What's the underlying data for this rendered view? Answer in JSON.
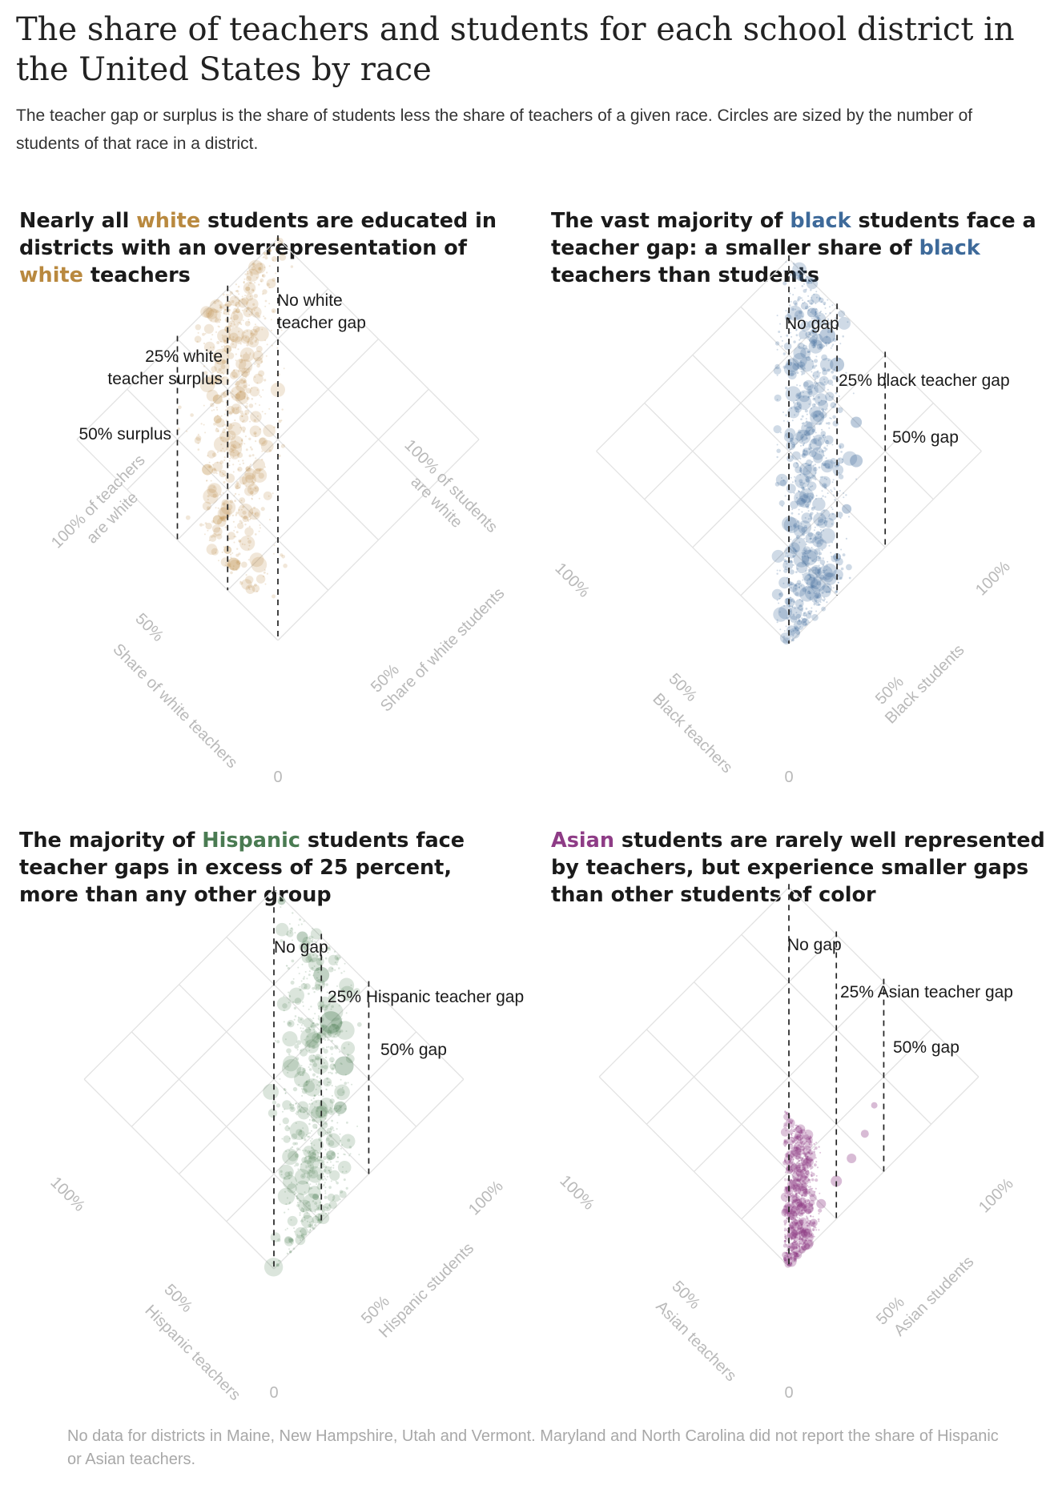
{
  "title": "The share of teachers and students for each school district in the United States by race",
  "subtitle": "The teacher gap or surplus is the share of students less the share of teachers of a given race. Circles are sized by the number of students of that race in a district.",
  "footnote": "No data for districts in Maine, New Hampshire, Utah and Vermont. Maryland and North Carolina did not report the share of Hispanic or Asian teachers.",
  "colors": {
    "white": "#b9893f",
    "black": "#3e6a9a",
    "hispanic": "#4a7b52",
    "asian": "#8e3c86",
    "grid": "#e2e2e2",
    "axis_text": "#b9b9b9"
  },
  "panels": [
    {
      "heading": {
        "p1": "Nearly all ",
        "h1": "white",
        "p2": " students are educated in districts with an overrepresentation of ",
        "h2": "white",
        "p3": " teachers"
      },
      "annotations": {
        "line0_a": "No white",
        "line0_b": "teacher gap",
        "line1_a": "25% white",
        "line1_b": "teacher surplus",
        "line2": "50% surplus"
      },
      "axes": {
        "left_pct": "100% of teachers",
        "left_sub": "are white",
        "left_mid": "50%",
        "left_title": "Share of white teachers",
        "right_pct": "100% of students",
        "right_sub": "are white",
        "right_mid": "50%",
        "right_title": "Share of white students",
        "origin": "0"
      }
    },
    {
      "heading": {
        "p1": "The vast majority of ",
        "h1": "black",
        "p2": " students face a teacher gap: a smaller share of ",
        "h2": "black",
        "p3": " teachers than students"
      },
      "annotations": {
        "line0": "No gap",
        "line1": "25% black teacher gap",
        "line2": "50% gap"
      },
      "axes": {
        "left_pct": "100%",
        "left_mid": "50%",
        "left_title": "Black teachers",
        "right_pct": "100%",
        "right_mid": "50%",
        "right_title": "Black students",
        "origin": "0"
      }
    },
    {
      "heading": {
        "p1": "The majority of ",
        "h1": "Hispanic",
        "p2": " students face teacher gaps in excess of 25 percent, more than any other group",
        "h2": "",
        "p3": ""
      },
      "annotations": {
        "line0": "No gap",
        "line1": "25% Hispanic teacher gap",
        "line2": "50% gap"
      },
      "axes": {
        "left_pct": "100%",
        "left_mid": "50%",
        "left_title": "Hispanic teachers",
        "right_pct": "100%",
        "right_mid": "50%",
        "right_title": "Hispanic students",
        "origin": "0"
      }
    },
    {
      "heading": {
        "p1": "",
        "h1": "Asian",
        "p2": " students are rarely well represented by teachers, but experience smaller gaps than other students of color",
        "h2": "",
        "p3": ""
      },
      "annotations": {
        "line0": "No gap",
        "line1": "25% Asian teacher gap",
        "line2": "50% gap"
      },
      "axes": {
        "left_pct": "100%",
        "left_mid": "50%",
        "left_title": "Asian teachers",
        "right_pct": "100%",
        "right_mid": "50%",
        "right_title": "Asian students",
        "origin": "0"
      }
    }
  ],
  "chart_data": [
    {
      "type": "scatter",
      "title": "Nearly all white students are educated in districts with an overrepresentation of white teachers",
      "xlabel": "Share of white teachers",
      "ylabel": "Share of white students",
      "xlim": [
        0,
        100
      ],
      "ylim": [
        0,
        100
      ],
      "color": "#b9893f",
      "reference_lines": [
        {
          "label": "No white teacher gap",
          "gap": 0
        },
        {
          "label": "25% white teacher surplus",
          "gap": -25
        },
        {
          "label": "50% surplus",
          "gap": -50
        }
      ],
      "cluster": {
        "student_range": [
          5,
          100
        ],
        "gap_mean": -22,
        "gap_spread": 14,
        "gap_min": -75,
        "gap_max": 10,
        "opacity": 0.2,
        "max_radius": 9
      },
      "points": [
        {
          "teachers": 100,
          "students": 100,
          "size": 2
        },
        {
          "teachers": 99,
          "students": 95,
          "size": 2
        },
        {
          "teachers": 97,
          "students": 88,
          "size": 2
        },
        {
          "teachers": 95,
          "students": 80,
          "size": 3
        },
        {
          "teachers": 92,
          "students": 72,
          "size": 3
        },
        {
          "teachers": 90,
          "students": 65,
          "size": 4
        },
        {
          "teachers": 85,
          "students": 60,
          "size": 5
        },
        {
          "teachers": 80,
          "students": 50,
          "size": 4
        },
        {
          "teachers": 75,
          "students": 45,
          "size": 6
        },
        {
          "teachers": 70,
          "students": 40,
          "size": 5
        },
        {
          "teachers": 60,
          "students": 25,
          "size": 7
        },
        {
          "teachers": 45,
          "students": 15,
          "size": 6
        },
        {
          "teachers": 35,
          "students": 10,
          "size": 5
        },
        {
          "teachers": 30,
          "students": 8,
          "size": 8
        }
      ]
    },
    {
      "type": "scatter",
      "title": "The vast majority of black students face a teacher gap: a smaller share of black teachers than students",
      "xlabel": "Black teachers",
      "ylabel": "Black students",
      "xlim": [
        0,
        100
      ],
      "ylim": [
        0,
        100
      ],
      "color": "#3e6a9a",
      "reference_lines": [
        {
          "label": "No gap",
          "gap": 0
        },
        {
          "label": "25% black teacher gap",
          "gap": 25
        },
        {
          "label": "50% gap",
          "gap": 50
        }
      ],
      "cluster": {
        "student_range": [
          0,
          100
        ],
        "gap_mean": 12,
        "gap_spread": 12,
        "gap_min": -6,
        "gap_max": 80,
        "opacity": 0.25,
        "max_radius": 9
      },
      "points": [
        {
          "teachers": 0,
          "students": 2,
          "size": 2
        },
        {
          "teachers": 2,
          "students": 10,
          "size": 3
        },
        {
          "teachers": 5,
          "students": 20,
          "size": 4
        },
        {
          "teachers": 10,
          "students": 35,
          "size": 5
        },
        {
          "teachers": 20,
          "students": 50,
          "size": 6
        },
        {
          "teachers": 30,
          "students": 65,
          "size": 8
        },
        {
          "teachers": 40,
          "students": 75,
          "size": 7
        },
        {
          "teachers": 60,
          "students": 85,
          "size": 9
        },
        {
          "teachers": 70,
          "students": 90,
          "size": 10
        },
        {
          "teachers": 80,
          "students": 92,
          "size": 6
        },
        {
          "teachers": 92,
          "students": 98,
          "size": 4
        }
      ]
    },
    {
      "type": "scatter",
      "title": "The majority of Hispanic students face teacher gaps in excess of 25 percent, more than any other group",
      "xlabel": "Hispanic teachers",
      "ylabel": "Hispanic students",
      "xlim": [
        0,
        100
      ],
      "ylim": [
        0,
        100
      ],
      "color": "#4a7b52",
      "reference_lines": [
        {
          "label": "No gap",
          "gap": 0
        },
        {
          "label": "25% Hispanic teacher gap",
          "gap": 25
        },
        {
          "label": "50% gap",
          "gap": 50
        }
      ],
      "cluster": {
        "student_range": [
          0,
          100
        ],
        "gap_mean": 22,
        "gap_spread": 13,
        "gap_min": -3,
        "gap_max": 60,
        "opacity": 0.2,
        "max_radius": 11
      },
      "points": [
        {
          "teachers": 0,
          "students": 2,
          "size": 2
        },
        {
          "teachers": 3,
          "students": 12,
          "size": 3
        },
        {
          "teachers": 8,
          "students": 30,
          "size": 4
        },
        {
          "teachers": 15,
          "students": 45,
          "size": 6
        },
        {
          "teachers": 25,
          "students": 60,
          "size": 8
        },
        {
          "teachers": 35,
          "students": 72,
          "size": 12
        },
        {
          "teachers": 50,
          "students": 80,
          "size": 14
        },
        {
          "teachers": 65,
          "students": 90,
          "size": 10
        },
        {
          "teachers": 80,
          "students": 95,
          "size": 7
        },
        {
          "teachers": 95,
          "students": 99,
          "size": 5
        }
      ]
    },
    {
      "type": "scatter",
      "title": "Asian students are rarely well represented by teachers, but experience smaller gaps than other students of color",
      "xlabel": "Asian teachers",
      "ylabel": "Asian students",
      "xlim": [
        0,
        100
      ],
      "ylim": [
        0,
        100
      ],
      "color": "#8e3c86",
      "reference_lines": [
        {
          "label": "No gap",
          "gap": 0
        },
        {
          "label": "25% Asian teacher gap",
          "gap": 25
        },
        {
          "label": "50% gap",
          "gap": 50
        }
      ],
      "cluster": {
        "student_range": [
          0,
          40
        ],
        "gap_mean": 6,
        "gap_spread": 6,
        "gap_min": -2,
        "gap_max": 55,
        "opacity": 0.3,
        "max_radius": 6
      },
      "points": [
        {
          "teachers": 0,
          "students": 1,
          "size": 2
        },
        {
          "teachers": 1,
          "students": 5,
          "size": 3
        },
        {
          "teachers": 3,
          "students": 10,
          "size": 4
        },
        {
          "teachers": 5,
          "students": 18,
          "size": 5
        },
        {
          "teachers": 8,
          "students": 25,
          "size": 6
        },
        {
          "teachers": 10,
          "students": 35,
          "size": 7
        },
        {
          "teachers": 12,
          "students": 45,
          "size": 6
        },
        {
          "teachers": 15,
          "students": 55,
          "size": 5
        },
        {
          "teachers": 20,
          "students": 65,
          "size": 4
        }
      ]
    }
  ]
}
